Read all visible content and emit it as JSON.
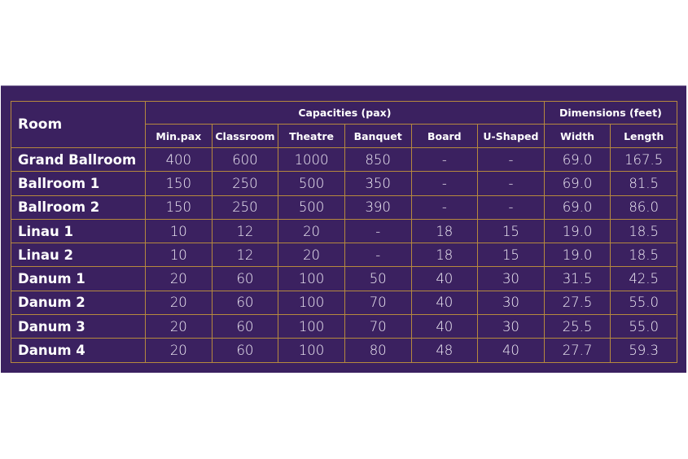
{
  "header": {
    "room": "Room",
    "capacities": "Capacities (pax)",
    "dimensions": "Dimensions (feet)",
    "columns": [
      "Min.pax",
      "Classroom",
      "Theatre",
      "Banquet",
      "Board",
      "U-Shaped",
      "Width",
      "Length"
    ]
  },
  "rows": [
    {
      "room": "Grand Ballroom",
      "values": [
        "400",
        "600",
        "1000",
        "850",
        "-",
        "-",
        "69.0",
        "167.5"
      ]
    },
    {
      "room": "Ballroom 1",
      "values": [
        "150",
        "250",
        "500",
        "350",
        "-",
        "-",
        "69.0",
        "81.5"
      ]
    },
    {
      "room": "Ballroom 2",
      "values": [
        "150",
        "250",
        "500",
        "390",
        "-",
        "-",
        "69.0",
        "86.0"
      ]
    },
    {
      "room": "Linau 1",
      "values": [
        "10",
        "12",
        "20",
        "-",
        "18",
        "15",
        "19.0",
        "18.5"
      ]
    },
    {
      "room": "Linau 2",
      "values": [
        "10",
        "12",
        "20",
        "-",
        "18",
        "15",
        "19.0",
        "18.5"
      ]
    },
    {
      "room": "Danum 1",
      "values": [
        "20",
        "60",
        "100",
        "50",
        "40",
        "30",
        "31.5",
        "42.5"
      ]
    },
    {
      "room": "Danum 2",
      "values": [
        "20",
        "60",
        "100",
        "70",
        "40",
        "30",
        "27.5",
        "55.0"
      ]
    },
    {
      "room": "Danum 3",
      "values": [
        "20",
        "60",
        "100",
        "70",
        "40",
        "30",
        "25.5",
        "55.0"
      ]
    },
    {
      "room": "Danum 4",
      "values": [
        "20",
        "60",
        "100",
        "80",
        "48",
        "40",
        "27.7",
        "59.3"
      ]
    }
  ],
  "colors": {
    "background": "#3b2160",
    "border": "#b6893e",
    "text": "#ffffff"
  }
}
